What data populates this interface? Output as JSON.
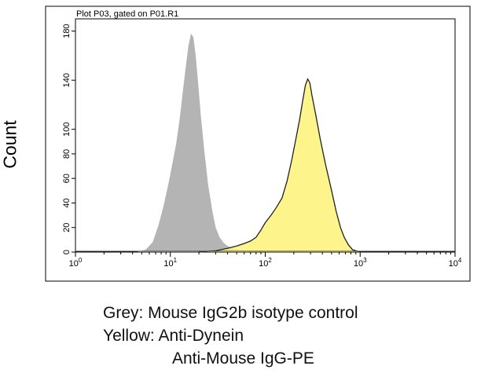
{
  "chart_data": {
    "type": "area",
    "title": "Plot P03, gated on P01.R1",
    "ylabel": "Count",
    "xlabel": "",
    "x_scale": "log",
    "xlim": [
      1,
      10000
    ],
    "ylim": [
      0,
      190
    ],
    "x_ticks": [
      1,
      10,
      100,
      1000,
      10000
    ],
    "x_tick_labels": [
      {
        "base": "10",
        "exp": "0"
      },
      {
        "base": "10",
        "exp": "1"
      },
      {
        "base": "10",
        "exp": "2"
      },
      {
        "base": "10",
        "exp": "3"
      },
      {
        "base": "10",
        "exp": "4"
      }
    ],
    "y_ticks": [
      0,
      20,
      40,
      60,
      80,
      100,
      140,
      180
    ],
    "y_tick_labels": [
      "0",
      "20",
      "40",
      "60",
      "80",
      "100",
      "140",
      "180"
    ],
    "grid": false,
    "series": [
      {
        "name": "Mouse IgG2b isotype control",
        "color": "#b4b4b4",
        "x": [
          4.5,
          5.5,
          6.5,
          7.5,
          8.5,
          9.5,
          10.5,
          11.5,
          12.5,
          13.5,
          14.5,
          15.5,
          16.5,
          17.5,
          18.5,
          19.5,
          21,
          23,
          25,
          27.5,
          30,
          33,
          36,
          40,
          45,
          50,
          55,
          60,
          70
        ],
        "values": [
          0,
          2,
          8,
          22,
          38,
          55,
          72,
          88,
          108,
          130,
          150,
          168,
          178,
          175,
          160,
          140,
          110,
          80,
          55,
          35,
          20,
          12,
          8,
          5,
          3,
          2,
          1,
          1,
          0
        ]
      },
      {
        "name": "Anti-Dynein",
        "color": "#fdf27c",
        "x": [
          20,
          30,
          40,
          50,
          60,
          70,
          80,
          90,
          100,
          115,
          130,
          150,
          170,
          190,
          210,
          230,
          250,
          265,
          280,
          295,
          310,
          340,
          380,
          430,
          500,
          560,
          620,
          680,
          750,
          830,
          900,
          1000
        ],
        "values": [
          0,
          1,
          3,
          5,
          7,
          9,
          12,
          18,
          24,
          30,
          36,
          44,
          58,
          75,
          92,
          108,
          125,
          136,
          141,
          138,
          128,
          112,
          92,
          72,
          50,
          33,
          20,
          12,
          6,
          2,
          1,
          0
        ]
      }
    ],
    "legend": {
      "grey": "Grey: Mouse IgG2b isotype control",
      "yellow": "Yellow: Anti-Dynein",
      "secondary": "Anti-Mouse IgG-PE"
    }
  }
}
